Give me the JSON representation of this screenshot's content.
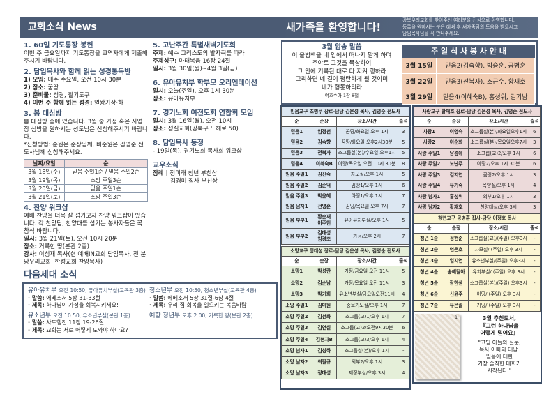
{
  "left": {
    "header": "교회소식 News",
    "news": [
      {
        "title": "1. 60일 기도통장 봉헌",
        "lines": [
          "이번 주 금요일까지 기도통장을 교역자에게 제출해 주시기 바랍니다."
        ]
      },
      {
        "title": "2. 담임목사와 함께 읽는 성경통독반",
        "items": [
          [
            "1) 모임:",
            "매주 수요일, 오전 10시 30분"
          ],
          [
            "2) 장소:",
            "꿈땅"
          ],
          [
            "3) 준비물:",
            "성경, 필기도구"
          ],
          [
            "4) 이번 주 함께 읽는 성경:",
            "열왕기상·하"
          ]
        ]
      },
      {
        "title": "3. 봄 대심방",
        "lines": [
          "봄 대심방 중에 있습니다. 3월 중 가정 혹은 사업장 심방을 원하시는 성도님은 신청해주시기 바랍니다.",
          "*신청방법: 순원은 순장님께, 비순원은 김영순 전도사님께 신청해주세요."
        ]
      },
      {
        "title": "4. 찬양 워크샵",
        "lines": [
          "예배 찬양을 더욱 잘 섬기고자 찬양 워크샵이 있습니다. 각 찬양팀, 찬양대를 섬기는 봉사자들은 꼭 참석 바랍니다."
        ],
        "items": [
          [
            "일시:",
            "3월 21일(토), 오전 10시 20분"
          ],
          [
            "장소:",
            "거룩한 땅(본관 2층)"
          ],
          [
            "강사:",
            "이성재 목사(현 예배IN교회 담임목사, 전 분당우리교회, 한성교회 찬양목사)"
          ]
        ]
      },
      {
        "title": "5. 고난주간 특별새벽기도회",
        "items": [
          [
            "주제:",
            "예수 그리스도의 발자취를 따라"
          ],
          [
            "주제성구:",
            "마태복음 16장 24절"
          ],
          [
            "일시:",
            "3월 30일(월)~4월 3일(금)"
          ]
        ]
      },
      {
        "title": "6. 유아유치부 학부모 오리엔테이션",
        "items": [
          [
            "일시:",
            "오늘(주일), 오후 1시 30분"
          ],
          [
            "장소:",
            "유아유치부"
          ]
        ]
      },
      {
        "title": "7. 경기노회 여전도회 연합회 모임",
        "items": [
          [
            "일시:",
            "3월 16일(월), 오전 10시"
          ],
          [
            "장소:",
            "성실교회(강북구 노해로 50)"
          ]
        ]
      },
      {
        "title": "8. 담임목사 동정",
        "lines": [
          "- 19일(목), 경기노회 목사회 워크샵"
        ]
      }
    ],
    "visit_table": {
      "headers": [
        "날짜/요일",
        "순"
      ],
      "rows": [
        [
          "3월 18일(수)",
          "믿음 주일1순 / 믿음 주일2순"
        ],
        [
          "3월 19일(목)",
          "소망 주일3순"
        ],
        [
          "3월 20일(금)",
          "믿음 주일1순"
        ],
        [
          "3월 21일(토)",
          "소망 주일3순"
        ]
      ]
    },
    "members": {
      "title": "교우소식",
      "label": "장례 |",
      "lines": [
        "정미래 청년 부친상",
        "김경미 집사 부친상"
      ]
    },
    "next_gen": {
      "title": "다음세대 소식",
      "col1": [
        {
          "name": "유아유치부",
          "info": "오전 10:50, 유아유치부실(교육관 3층)",
          "lines": [
            [
              "· 말씀:",
              "에베소서 5장 31-33절"
            ],
            [
              "· 제목:",
              "하나님이 가정을 회복시키세요!"
            ]
          ]
        },
        {
          "name": "유소년부",
          "info": "오전 10:50, 유소년부실(본관 1층)",
          "lines": [
            [
              "· 말씀:",
              "사도행전 11장 19-26절"
            ],
            [
              "· 제목:",
              "교회는 서로 어떻게 도와야 하나요?"
            ]
          ]
        }
      ],
      "col2": [
        {
          "name": "청소년부",
          "info": "오전 10:50, 청소년부실(교육관 4층)",
          "lines": [
            [
              "· 말씀:",
              "에베소서 5장 31절-6장 4절"
            ],
            [
              "· 제목:",
              "우리 집 회복을 일으키는 복음바람"
            ]
          ]
        },
        {
          "name": "예향 청년부",
          "info": "오후 2:00, 거룩한 땅(본관 2층)",
          "lines": []
        }
      ]
    }
  },
  "right": {
    "header": "새가족을 환영합니다!",
    "welcome": [
      "강북우리교회를 찾아주신 여러분을 진심으로 환영합니다.",
      "등록을 원하시는 분은 예배 후 새가족팀의 도움을 받으시고",
      "담임목사님을 꼭 만나주세요."
    ],
    "verse": {
      "title": "3월 암송 말씀",
      "lines": [
        "이 율법책을 네 입에서 떠나지 말게 하며",
        "주야로 그것을 묵상하여",
        "그 안에 기록된 대로 다 지켜 행하라",
        "그리하면 네 길이 평탄하게 될 것이며",
        "네가 형통하리라"
      ],
      "ref": "- 여호수아 1장 8절 -"
    },
    "serving": {
      "title": "주 일 식 사 봉 사 안 내",
      "rows": [
        [
          "3월 15일",
          "믿음2(김숙향), 박승훈, 공병훈"
        ],
        [
          "3월 22일",
          "믿음3(전복자), 조근수, 황재호"
        ],
        [
          "3월 29일",
          "믿음4(이혜숙B), 홍성위, 김기남"
        ]
      ]
    },
    "groups": [
      {
        "id": "faith",
        "color": "#dce7f2",
        "title": "믿음교구 조병무 장로-담당 김은성 목사, 김영순 전도사",
        "headers": [
          "순",
          "순장",
          "장소/시간",
          "출석"
        ],
        "rows": [
          [
            "믿음1",
            "임정선",
            "꿈땅/화요일 오후 1시",
            "3"
          ],
          [
            "믿음2",
            "김숙향",
            "꿈땅/화요일 오후2시30분",
            "5"
          ],
          [
            "믿음3",
            "전복자",
            "소그룹실(본)/수요일 오후1시",
            "5"
          ],
          [
            "믿음4",
            "이혜숙B",
            "아땅/목요일 오전 10시 30분",
            "8"
          ],
          [
            "믿음 주일1",
            "김진숙",
            "자모실/오후 1시",
            "5"
          ],
          [
            "믿음 주일2",
            "김순덕",
            "꿈땅1/오후 1시",
            "6"
          ],
          [
            "믿음 주일3",
            "박윤혜",
            "아땅1/오후 1시",
            "7"
          ],
          [
            "믿음 남자1",
            "전명훈",
            "꿈땅/목요일 오후 7시",
            "7"
          ],
          [
            "믿음 부부1",
            "황순재\n이주헌",
            "유아유치부실/오후 1시",
            "5"
          ],
          [
            "믿음 부부2",
            "김태성\n임경조",
            "가정/오후 2시",
            "7"
          ]
        ]
      },
      {
        "id": "hope",
        "color": "#e5efd9",
        "title": "소망교구 정대성 장로-담당 김은성 목사, 김영순 전도사",
        "headers": [
          "순",
          "순장",
          "장소/시간",
          "출석"
        ],
        "rows": [
          [
            "소망1",
            "박성란",
            "가정/금요일 오전 11시",
            "5"
          ],
          [
            "소망2",
            "김순남",
            "가정/목요일 오전 11시",
            "3"
          ],
          [
            "소망3",
            "박기희",
            "유소년부실/금요일오전11시",
            "4"
          ],
          [
            "소망 주일1",
            "김미원",
            "중보기도실/오후 1시",
            "7"
          ],
          [
            "소망 주일2",
            "김선화",
            "소그룹(고)1/오후 1시",
            "7"
          ],
          [
            "소망 주일3",
            "김연실",
            "소그룹(고)2/오전9시30분",
            "6"
          ],
          [
            "소망 주일4",
            "김현자B",
            "소그룹(고)3/오후 1시",
            "4"
          ],
          [
            "소망 남자1",
            "김성하",
            "소그룹실(본)/오후 1시",
            "-"
          ],
          [
            "소망 남자2",
            "최필규",
            "외부2/오후 1시",
            "3"
          ],
          [
            "소망 남자3",
            "정대성",
            "제정부실/오후 3시",
            "4"
          ]
        ]
      },
      {
        "id": "love",
        "color": "#ecdada",
        "title": "사랑교구 황재호 장로-담당 김은성 목사, 김영순 전도사",
        "headers": [
          "순",
          "순장",
          "장소/시간",
          "출석"
        ],
        "rows": [
          [
            "사랑1",
            "이영숙",
            "소그룹실(본)/화요일오후1시",
            "6"
          ],
          [
            "사랑2",
            "이순화",
            "소그룹실(본)/목요일오후7시",
            "3"
          ],
          [
            "사랑 주일1",
            "남경애",
            "소그룹(교)2/오후 1시",
            "6"
          ],
          [
            "사랑 주일2",
            "노난주",
            "아땅2/오후 1시 30분",
            "6"
          ],
          [
            "사랑 주일3",
            "김지연",
            "꿈땅2/오후 1시",
            "3"
          ],
          [
            "사랑 주일4",
            "유기숙",
            "목양실/오후 1시",
            "4"
          ],
          [
            "사랑 남자1",
            "홍성위",
            "외부1/오후 1시",
            "3"
          ],
          [
            "사랑 남자2",
            "황재호",
            "찬양대실/오후 3시",
            "3"
          ]
        ]
      },
      {
        "id": "youth",
        "color": "#fbf5d3",
        "title": "청년교구 공병훈 집사-담당 이정호 목사",
        "headers": [
          "순",
          "순장",
          "장소/시간",
          "출석"
        ],
        "rows": [
          [
            "청년 1순",
            "정현준",
            "소그룹실(교)/(주일) 오후3시",
            "-"
          ],
          [
            "청년 2순",
            "염은호",
            "자모실/ (주일) 오후 3시",
            "-"
          ],
          [
            "청년 3순",
            "임지연",
            "유소년부실/(주일) 오후3시",
            "-"
          ],
          [
            "청년 4순",
            "송해달아",
            "유치부실/ (주일) 오후 3시",
            "-"
          ],
          [
            "청년 5순",
            "장한샘",
            "소그룹실(본)/(주일) 오후3시",
            "-"
          ],
          [
            "청년 6순",
            "신윤주",
            "아땅/ (주일) 오후 3시",
            "-"
          ],
          [
            "청년 7순",
            "유은솔",
            "거땅/ (주일) 오후 3시",
            "-"
          ]
        ]
      }
    ],
    "book": {
      "title": [
        "3월 추천도서,",
        "『그런 하나님을",
        "어떻게 믿어요』"
      ],
      "quote": [
        "\"고딩 아들의 질문,",
        "목사 아빠의 대답.",
        "믿음에 대한",
        "가장 솔직한 대화가",
        "시작된다.\""
      ],
      "cover_number": "1"
    }
  },
  "colors": {
    "header": "#4b5b74",
    "heading": "#3d5270",
    "serving_row": "#f2cdb3"
  }
}
